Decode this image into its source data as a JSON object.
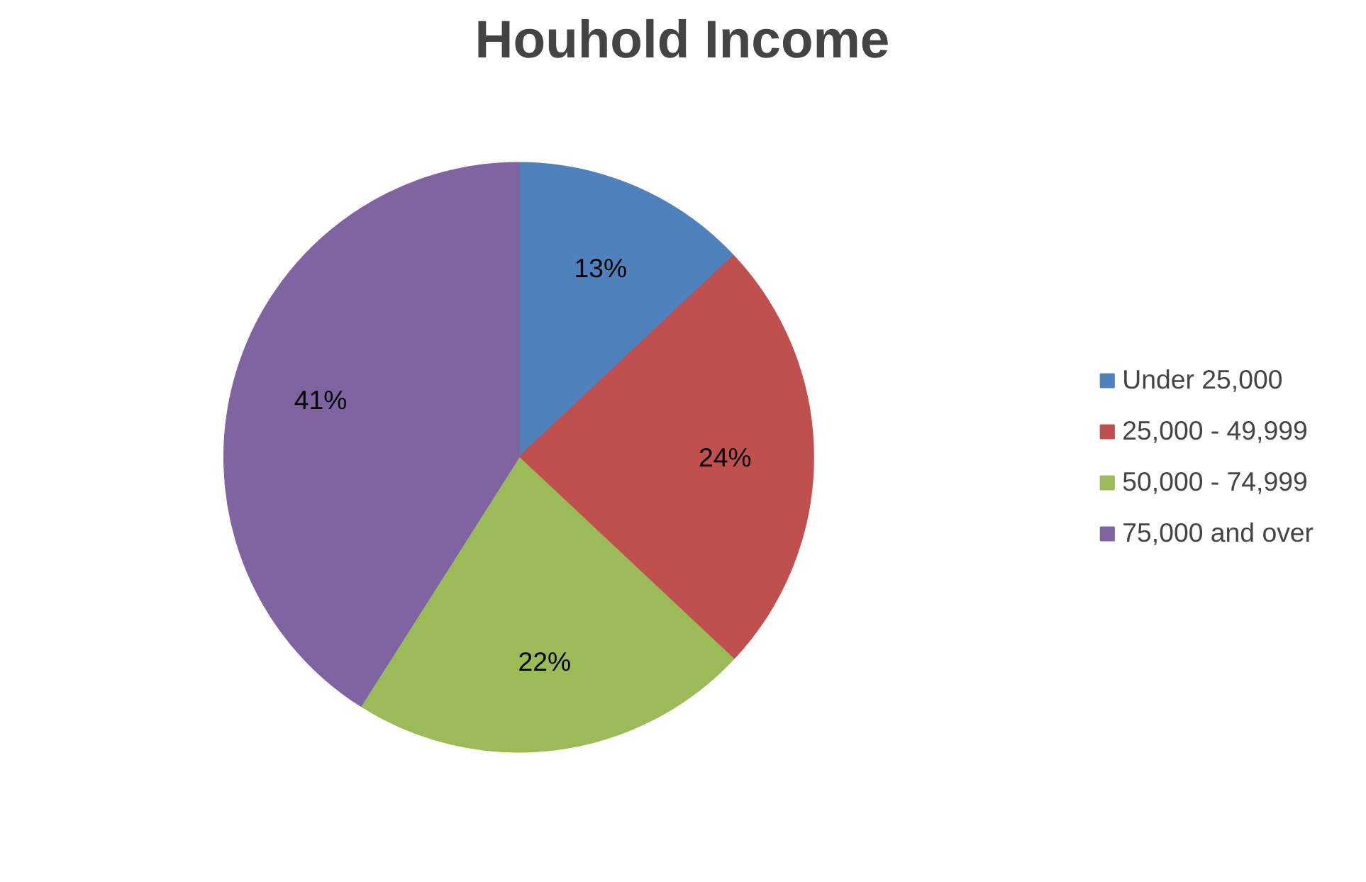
{
  "chart_data": {
    "type": "pie",
    "title": "Houhold Income",
    "categories": [
      "Under 25,000",
      "25,000 - 49,999",
      "50,000 - 74,999",
      "75,000 and over"
    ],
    "values": [
      13,
      24,
      22,
      41
    ],
    "colors": [
      "#4f81bd",
      "#c0504d",
      "#9bbb59",
      "#8064a2"
    ],
    "value_labels": [
      "13%",
      "24%",
      "22%",
      "41%"
    ],
    "legend": "right"
  }
}
